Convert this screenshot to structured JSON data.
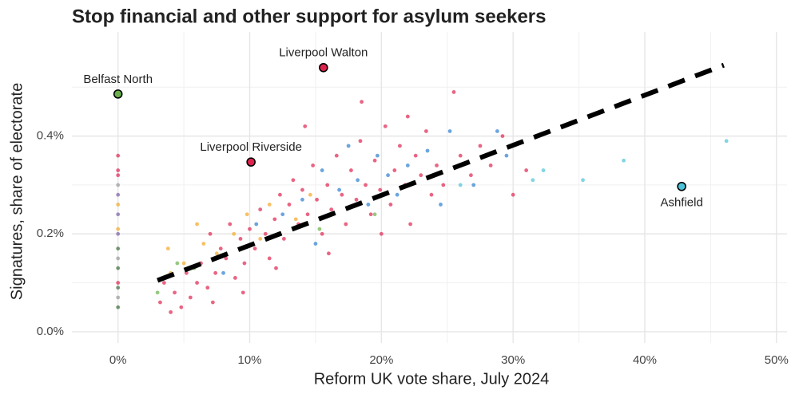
{
  "chart_data": {
    "type": "scatter",
    "title": "Stop financial and other support for asylum seekers",
    "x_label": "Reform UK vote share, July 2024",
    "y_label": "Signatures, share of electorate",
    "xlim": [
      -3.5,
      50.8
    ],
    "ylim": [
      -0.023,
      0.613
    ],
    "xticks": [
      {
        "value": 0,
        "label": "0%"
      },
      {
        "value": 10,
        "label": "10%"
      },
      {
        "value": 20,
        "label": "20%"
      },
      {
        "value": 30,
        "label": "30%"
      },
      {
        "value": 40,
        "label": "40%"
      },
      {
        "value": 50,
        "label": "50%"
      }
    ],
    "yticks": [
      {
        "value": 0,
        "label": "0.0%"
      },
      {
        "value": 0.2,
        "label": "0.2%"
      },
      {
        "value": 0.4,
        "label": "0.4%"
      }
    ],
    "x_minor_grid": [
      5,
      15,
      25,
      35,
      45
    ],
    "y_minor_grid": [
      0.1,
      0.3,
      0.5
    ],
    "grid": true,
    "series": [
      {
        "color": "#e0234e",
        "x": [
          3.2,
          3.5,
          4,
          4.3,
          4.8,
          5.2,
          5.5,
          6,
          6.3,
          6.8,
          7,
          7.4,
          7.8,
          8.2,
          8.5,
          8.9,
          9.3,
          9.6,
          10,
          10.4,
          10.8,
          11.2,
          11.5,
          11.9,
          12.3,
          12.6,
          13,
          13.3,
          13.7,
          14,
          14.4,
          14.8,
          15.1,
          15.5,
          15.9,
          16.2,
          16.6,
          17,
          17.3,
          17.7,
          18.1,
          18.4,
          18.8,
          19.2,
          19.5,
          19.9,
          20.3,
          20.7,
          21,
          21.4,
          21.8,
          22.2,
          22.6,
          23,
          23.4,
          23.8,
          24.2,
          24.7,
          25.5,
          26,
          26.8,
          27.5,
          28.3,
          29.2,
          30,
          31,
          14.2,
          18.5,
          9.5,
          12,
          7.2,
          16,
          20,
          22,
          0,
          0,
          0,
          0
        ],
        "values": [
          0.06,
          0.1,
          0.04,
          0.08,
          0.05,
          0.12,
          0.07,
          0.1,
          0.14,
          0.09,
          0.2,
          0.12,
          0.17,
          0.15,
          0.22,
          0.11,
          0.19,
          0.14,
          0.21,
          0.17,
          0.25,
          0.2,
          0.15,
          0.23,
          0.28,
          0.19,
          0.26,
          0.31,
          0.22,
          0.29,
          0.24,
          0.34,
          0.27,
          0.2,
          0.3,
          0.25,
          0.36,
          0.28,
          0.22,
          0.33,
          0.27,
          0.39,
          0.3,
          0.24,
          0.35,
          0.29,
          0.42,
          0.26,
          0.33,
          0.38,
          0.3,
          0.22,
          0.36,
          0.32,
          0.41,
          0.28,
          0.34,
          0.3,
          0.49,
          0.36,
          0.32,
          0.38,
          0.34,
          0.4,
          0.28,
          0.33,
          0.42,
          0.47,
          0.08,
          0.13,
          0.06,
          0.16,
          0.2,
          0.44,
          0.1,
          0.32,
          0.36,
          0.33
        ]
      },
      {
        "color": "#2c7fd1",
        "x": [
          8,
          10.5,
          12.5,
          14,
          15.5,
          16.8,
          17.5,
          18.2,
          19,
          19.7,
          20.5,
          21.2,
          22,
          23.5,
          24.5,
          25.2,
          27,
          28.8,
          29.5,
          15
        ],
        "values": [
          0.12,
          0.22,
          0.24,
          0.27,
          0.33,
          0.29,
          0.38,
          0.31,
          0.26,
          0.36,
          0.32,
          0.28,
          0.34,
          0.37,
          0.26,
          0.41,
          0.3,
          0.41,
          0.36,
          0.18
        ]
      },
      {
        "color": "#f5a623",
        "x": [
          4,
          5,
          6.5,
          7.5,
          8.8,
          9.8,
          10.8,
          11.5,
          12.2,
          13.5,
          14.6,
          6,
          3.8,
          0,
          0
        ],
        "values": [
          0.12,
          0.14,
          0.18,
          0.16,
          0.2,
          0.24,
          0.19,
          0.26,
          0.2,
          0.23,
          0.28,
          0.22,
          0.17,
          0.21,
          0.26
        ]
      },
      {
        "color": "#4cc3d9",
        "x": [
          31.5,
          35.3,
          38.4,
          46.2,
          32.3,
          26
        ],
        "values": [
          0.31,
          0.31,
          0.35,
          0.39,
          0.33,
          0.3
        ]
      },
      {
        "color": "#6ab04c",
        "x": [
          4.5,
          5.8,
          15.3,
          19.5,
          3
        ],
        "values": [
          0.14,
          0.13,
          0.21,
          0.24,
          0.08
        ]
      },
      {
        "color": "#3a6b3a",
        "x": [
          0,
          0,
          0,
          0
        ],
        "values": [
          0.05,
          0.09,
          0.13,
          0.17
        ]
      },
      {
        "color": "#7b5ea7",
        "x": [
          0,
          0,
          0
        ],
        "values": [
          0.2,
          0.24,
          0.28
        ]
      },
      {
        "color": "#999999",
        "x": [
          0,
          0,
          0
        ],
        "values": [
          0.07,
          0.15,
          0.3
        ]
      }
    ],
    "trend_line": {
      "x": [
        3,
        46
      ],
      "values": [
        0.105,
        0.545
      ]
    },
    "highlights": [
      {
        "label": "Belfast North",
        "x": 0,
        "value": 0.486,
        "color": "#6ab04c"
      },
      {
        "label": "Liverpool Walton",
        "x": 15.6,
        "value": 0.54,
        "color": "#e0234e"
      },
      {
        "label": "Liverpool Riverside",
        "x": 10.1,
        "value": 0.347,
        "color": "#e0234e"
      },
      {
        "label": "Ashfield",
        "x": 42.8,
        "value": 0.297,
        "color": "#4cc3d9"
      }
    ]
  }
}
